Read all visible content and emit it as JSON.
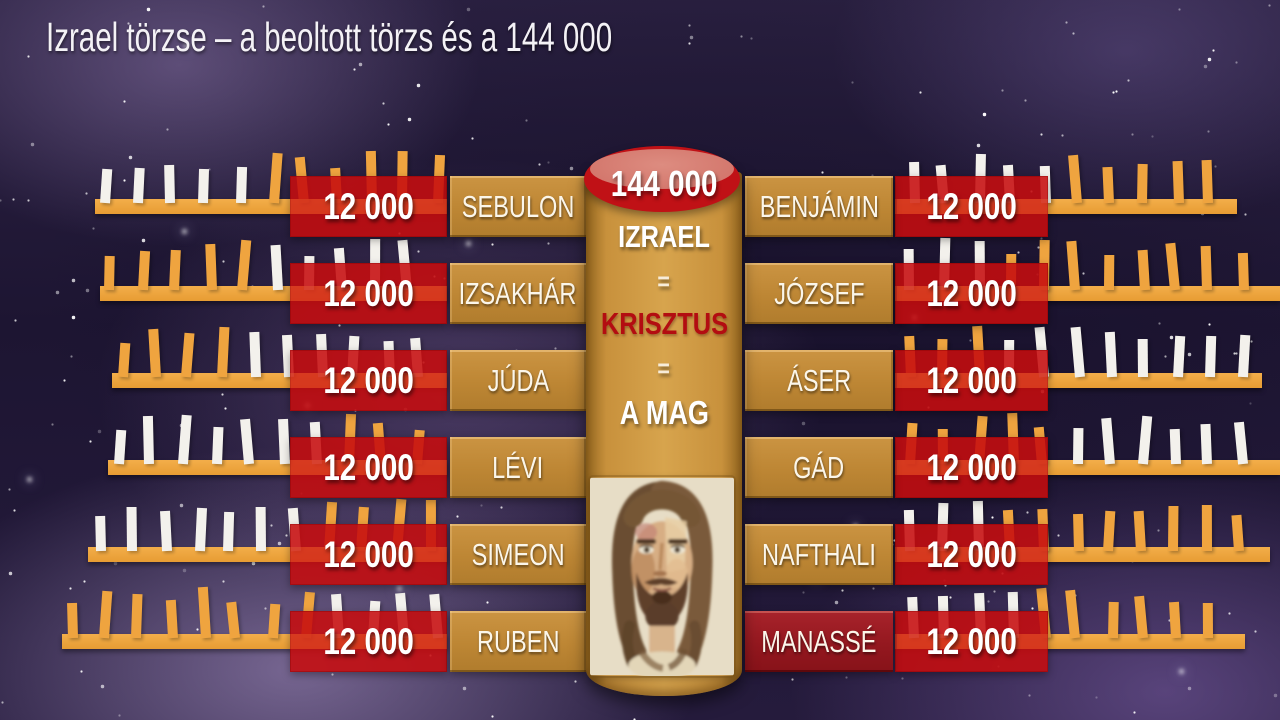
{
  "title": "Izrael törzse – a beoltott törzs és a 144 000",
  "center_column": {
    "badge_value": "144 000",
    "izrael": "IZRAEL",
    "equals_1": "=",
    "krisztus": "KRISZTUS",
    "equals_2": "=",
    "a_mag": "A MAG",
    "portrait": "jesus-watercolor-portrait"
  },
  "left_rows": [
    {
      "value": "12 000",
      "name": "SEBULON",
      "ticks": [
        "w",
        "w",
        "w",
        "w",
        "w",
        "o",
        "o",
        "o",
        "o",
        "o"
      ]
    },
    {
      "value": "12 000",
      "name": "IZSAKHÁR",
      "ticks": [
        "o",
        "o",
        "o",
        "o",
        "o",
        "w",
        "w",
        "w",
        "w",
        "w"
      ]
    },
    {
      "value": "12 000",
      "name": "JÚDA",
      "ticks": [
        "o",
        "o",
        "o",
        "o",
        "w",
        "w",
        "w",
        "w",
        "w",
        "w"
      ]
    },
    {
      "value": "12 000",
      "name": "LÉVI",
      "ticks": [
        "w",
        "w",
        "w",
        "w",
        "w",
        "w",
        "w",
        "o",
        "o",
        "o"
      ]
    },
    {
      "value": "12 000",
      "name": "SIMEON",
      "ticks": [
        "w",
        "w",
        "w",
        "w",
        "w",
        "w",
        "o",
        "o",
        "o",
        "o"
      ]
    },
    {
      "value": "12 000",
      "name": "RUBEN",
      "ticks": [
        "o",
        "o",
        "o",
        "o",
        "o",
        "o",
        "o",
        "w",
        "w",
        "w"
      ]
    }
  ],
  "right_rows": [
    {
      "name": "BENJÁMIN",
      "value": "12 000",
      "highlight": false,
      "ticks": [
        "w",
        "w",
        "w",
        "w",
        "w",
        "o",
        "o",
        "o",
        "o",
        "o"
      ]
    },
    {
      "name": "JÓZSEF",
      "value": "12 000",
      "highlight": false,
      "ticks": [
        "w",
        "w",
        "w",
        "o",
        "o",
        "o",
        "o",
        "o",
        "o",
        "o"
      ]
    },
    {
      "name": "ÁSER",
      "value": "12 000",
      "highlight": false,
      "ticks": [
        "o",
        "o",
        "o",
        "w",
        "w",
        "w",
        "w",
        "w",
        "w",
        "w"
      ]
    },
    {
      "name": "GÁD",
      "value": "12 000",
      "highlight": false,
      "ticks": [
        "o",
        "o",
        "o",
        "o",
        "o",
        "w",
        "w",
        "w",
        "w",
        "w"
      ]
    },
    {
      "name": "NAFTHALI",
      "value": "12 000",
      "highlight": false,
      "ticks": [
        "w",
        "w",
        "w",
        "o",
        "o",
        "o",
        "o",
        "o",
        "o",
        "o"
      ]
    },
    {
      "name": "MANASSÉ",
      "value": "12 000",
      "highlight": true,
      "ticks": [
        "w",
        "w",
        "w",
        "w",
        "o",
        "o",
        "o",
        "o",
        "o",
        "o"
      ]
    }
  ],
  "colors": {
    "tick_orange": "#efa43f",
    "tick_white": "#f3f1ec",
    "red_box": "#c60d0f",
    "name_box_tan": "#bd8634",
    "name_box_highlight": "#94181f",
    "column_tan": "#c8913c",
    "cap_red": "#c01116",
    "cap_pink": "#d07066",
    "krisztus_text": "#b30d11",
    "title_text": "#f4f2f6"
  }
}
